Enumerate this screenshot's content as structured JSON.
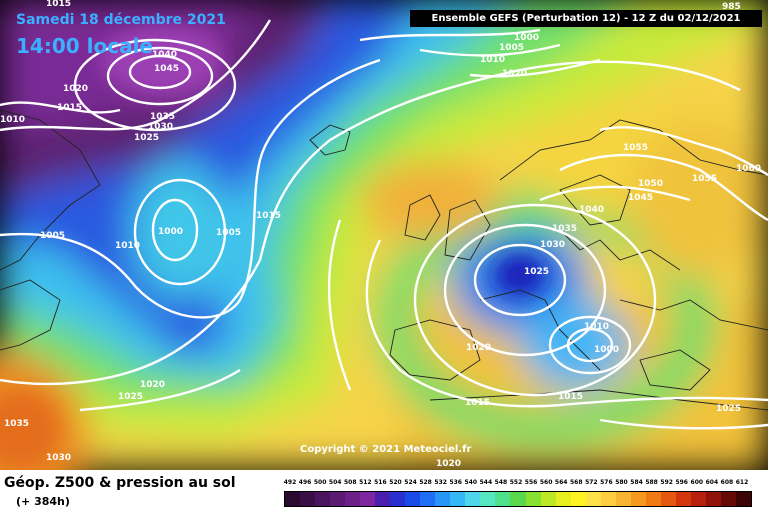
{
  "header": {
    "date": "Samedi 18 décembre 2021",
    "time": "14:00 locale",
    "banner": "Ensemble GEFS  (Perturbation 12)  -  12 Z du 02/12/2021"
  },
  "copyright": "Copyright © 2021 Meteociel.fr",
  "footer": {
    "title": "Géop. Z500 & pression au sol",
    "subtitle": "(+ 384h)"
  },
  "isobar_labels": [
    "1015",
    "1040",
    "1045",
    "1020",
    "1015",
    "1010",
    "1035",
    "1030",
    "1025",
    "985",
    "1000",
    "1005",
    "1010",
    "1020",
    "1005",
    "1000",
    "1005",
    "1010",
    "1015",
    "1055",
    "1050",
    "1055",
    "1060",
    "1045",
    "1040",
    "1035",
    "1030",
    "1025",
    "1010",
    "1000",
    "1020",
    "1020",
    "1025",
    "1015",
    "1015",
    "1025",
    "1035",
    "1030",
    "1020"
  ],
  "scale": {
    "labels": [
      "492",
      "496",
      "500",
      "504",
      "508",
      "512",
      "516",
      "520",
      "524",
      "528",
      "532",
      "536",
      "540",
      "544",
      "548",
      "552",
      "556",
      "560",
      "564",
      "568",
      "572",
      "576",
      "580",
      "584",
      "588",
      "592",
      "596",
      "600",
      "604",
      "608",
      "612"
    ],
    "colors": [
      "#2a0a2e",
      "#3a0f45",
      "#4b145c",
      "#5c1a72",
      "#6d2089",
      "#7e26a0",
      "#4a1fb0",
      "#2a2fd0",
      "#1a4ae8",
      "#1f6ef5",
      "#2796f7",
      "#35b8f5",
      "#4fd6ea",
      "#55e6c2",
      "#4ee08a",
      "#58d84a",
      "#88e030",
      "#bce826",
      "#e6ef20",
      "#fff321",
      "#ffe24a",
      "#ffcd3f",
      "#f7b531",
      "#f59a1f",
      "#f17a14",
      "#e5580f",
      "#d3350d",
      "#b6200d",
      "#8f130a",
      "#660a08",
      "#3a0504"
    ]
  }
}
